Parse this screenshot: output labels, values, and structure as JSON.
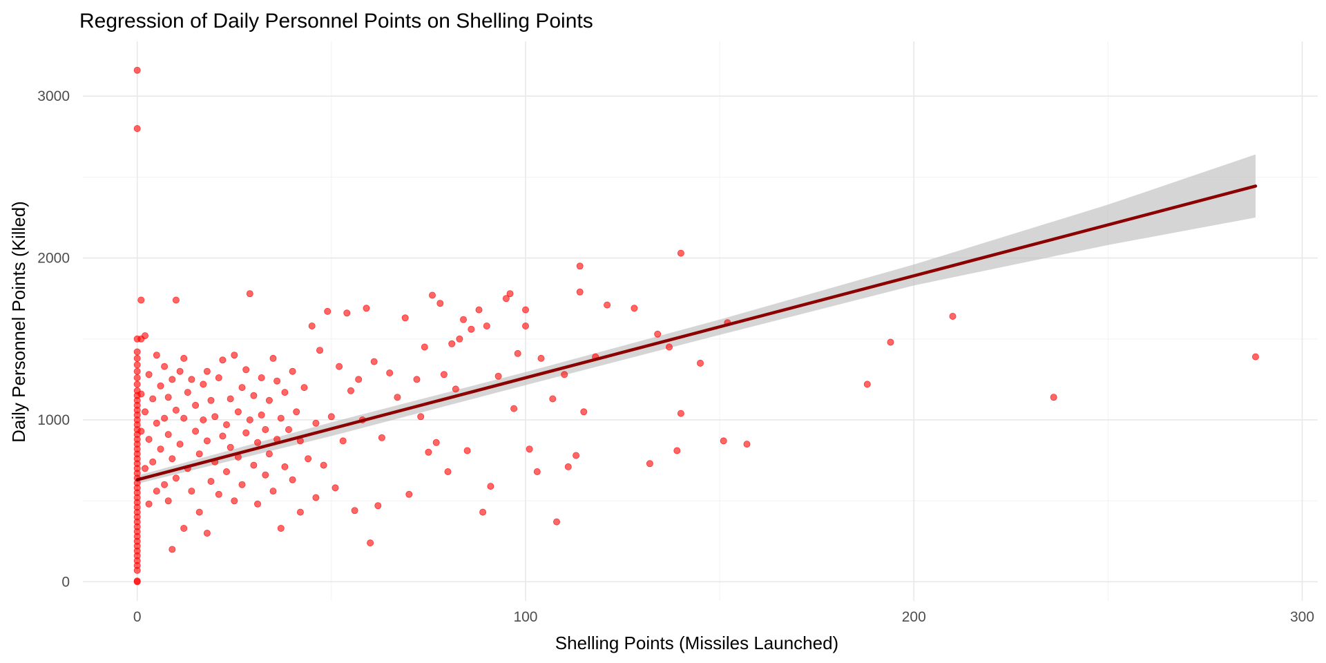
{
  "chart_data": {
    "type": "scatter",
    "title": "Regression of Daily Personnel Points on Shelling Points",
    "xlabel": "Shelling Points (Missiles Launched)",
    "ylabel": "Daily Personnel Points (Killed)",
    "xlim": [
      -14,
      304
    ],
    "ylim": [
      -118,
      3338
    ],
    "xticks": [
      0,
      100,
      200,
      300
    ],
    "yticks": [
      0,
      1000,
      2000,
      3000
    ],
    "grid": true,
    "colors": {
      "points": "#ff0000",
      "line": "#8b0000",
      "band": "#bebebe",
      "grid": "#ebebeb"
    },
    "regression": {
      "x_range": [
        0,
        288
      ],
      "intercept": 630,
      "slope": 6.3,
      "ci_lower": [
        [
          0,
          605
        ],
        [
          50,
          900
        ],
        [
          100,
          1215
        ],
        [
          150,
          1525
        ],
        [
          200,
          1830
        ],
        [
          250,
          2080
        ],
        [
          288,
          2250
        ]
      ],
      "ci_upper": [
        [
          0,
          655
        ],
        [
          50,
          985
        ],
        [
          100,
          1295
        ],
        [
          150,
          1620
        ],
        [
          200,
          1960
        ],
        [
          250,
          2330
        ],
        [
          288,
          2640
        ]
      ]
    },
    "points": [
      [
        0,
        3160
      ],
      [
        0,
        2800
      ],
      [
        0,
        1500
      ],
      [
        0,
        1420
      ],
      [
        0,
        1380
      ],
      [
        0,
        1340
      ],
      [
        0,
        1300
      ],
      [
        0,
        1260
      ],
      [
        0,
        1220
      ],
      [
        0,
        1180
      ],
      [
        0,
        1150
      ],
      [
        0,
        1120
      ],
      [
        0,
        1090
      ],
      [
        0,
        1060
      ],
      [
        0,
        1030
      ],
      [
        0,
        1000
      ],
      [
        0,
        970
      ],
      [
        0,
        940
      ],
      [
        0,
        910
      ],
      [
        0,
        880
      ],
      [
        0,
        850
      ],
      [
        0,
        820
      ],
      [
        0,
        790
      ],
      [
        0,
        760
      ],
      [
        0,
        730
      ],
      [
        0,
        700
      ],
      [
        0,
        670
      ],
      [
        0,
        640
      ],
      [
        0,
        610
      ],
      [
        0,
        580
      ],
      [
        0,
        550
      ],
      [
        0,
        520
      ],
      [
        0,
        490
      ],
      [
        0,
        460
      ],
      [
        0,
        430
      ],
      [
        0,
        400
      ],
      [
        0,
        370
      ],
      [
        0,
        340
      ],
      [
        0,
        310
      ],
      [
        0,
        280
      ],
      [
        0,
        250
      ],
      [
        0,
        220
      ],
      [
        0,
        190
      ],
      [
        0,
        160
      ],
      [
        0,
        130
      ],
      [
        0,
        100
      ],
      [
        0,
        70
      ],
      [
        0,
        0
      ],
      [
        0,
        5
      ],
      [
        1,
        1740
      ],
      [
        1,
        1500
      ],
      [
        1,
        1160
      ],
      [
        1,
        930
      ],
      [
        2,
        1520
      ],
      [
        2,
        1050
      ],
      [
        2,
        700
      ],
      [
        3,
        1280
      ],
      [
        3,
        880
      ],
      [
        3,
        480
      ],
      [
        4,
        1130
      ],
      [
        4,
        740
      ],
      [
        5,
        1400
      ],
      [
        5,
        980
      ],
      [
        5,
        560
      ],
      [
        6,
        1210
      ],
      [
        6,
        820
      ],
      [
        7,
        1010
      ],
      [
        7,
        600
      ],
      [
        7,
        1330
      ],
      [
        8,
        910
      ],
      [
        8,
        1140
      ],
      [
        8,
        500
      ],
      [
        9,
        200
      ],
      [
        9,
        1250
      ],
      [
        9,
        760
      ],
      [
        10,
        1740
      ],
      [
        10,
        1060
      ],
      [
        10,
        640
      ],
      [
        11,
        1300
      ],
      [
        11,
        850
      ],
      [
        12,
        1380
      ],
      [
        12,
        1010
      ],
      [
        12,
        330
      ],
      [
        13,
        700
      ],
      [
        13,
        1170
      ],
      [
        14,
        1250
      ],
      [
        14,
        560
      ],
      [
        15,
        930
      ],
      [
        15,
        1090
      ],
      [
        16,
        430
      ],
      [
        16,
        790
      ],
      [
        17,
        1220
      ],
      [
        17,
        1000
      ],
      [
        18,
        870
      ],
      [
        18,
        1300
      ],
      [
        18,
        300
      ],
      [
        19,
        620
      ],
      [
        19,
        1120
      ],
      [
        20,
        1020
      ],
      [
        20,
        740
      ],
      [
        21,
        1260
      ],
      [
        21,
        540
      ],
      [
        22,
        1370
      ],
      [
        22,
        900
      ],
      [
        23,
        970
      ],
      [
        23,
        680
      ],
      [
        24,
        1130
      ],
      [
        24,
        830
      ],
      [
        25,
        1400
      ],
      [
        25,
        500
      ],
      [
        26,
        1050
      ],
      [
        26,
        770
      ],
      [
        27,
        1200
      ],
      [
        27,
        600
      ],
      [
        28,
        920
      ],
      [
        28,
        1310
      ],
      [
        29,
        1780
      ],
      [
        29,
        1000
      ],
      [
        30,
        720
      ],
      [
        30,
        1150
      ],
      [
        31,
        860
      ],
      [
        31,
        480
      ],
      [
        32,
        1260
      ],
      [
        32,
        1030
      ],
      [
        33,
        940
      ],
      [
        33,
        660
      ],
      [
        34,
        1120
      ],
      [
        34,
        790
      ],
      [
        35,
        1380
      ],
      [
        35,
        560
      ],
      [
        36,
        1240
      ],
      [
        36,
        880
      ],
      [
        37,
        1010
      ],
      [
        37,
        330
      ],
      [
        38,
        1170
      ],
      [
        38,
        710
      ],
      [
        39,
        940
      ],
      [
        40,
        1300
      ],
      [
        40,
        630
      ],
      [
        41,
        1050
      ],
      [
        42,
        870
      ],
      [
        42,
        430
      ],
      [
        43,
        1200
      ],
      [
        44,
        760
      ],
      [
        45,
        1580
      ],
      [
        46,
        980
      ],
      [
        46,
        520
      ],
      [
        47,
        1430
      ],
      [
        48,
        720
      ],
      [
        49,
        1670
      ],
      [
        50,
        1020
      ],
      [
        51,
        580
      ],
      [
        52,
        1330
      ],
      [
        53,
        870
      ],
      [
        54,
        1660
      ],
      [
        55,
        1180
      ],
      [
        56,
        440
      ],
      [
        57,
        1250
      ],
      [
        58,
        1000
      ],
      [
        59,
        1690
      ],
      [
        60,
        240
      ],
      [
        61,
        1360
      ],
      [
        62,
        470
      ],
      [
        63,
        890
      ],
      [
        65,
        1290
      ],
      [
        67,
        1140
      ],
      [
        69,
        1630
      ],
      [
        70,
        540
      ],
      [
        72,
        1250
      ],
      [
        73,
        1020
      ],
      [
        74,
        1450
      ],
      [
        75,
        800
      ],
      [
        76,
        1770
      ],
      [
        77,
        860
      ],
      [
        78,
        1720
      ],
      [
        79,
        1280
      ],
      [
        80,
        680
      ],
      [
        81,
        1470
      ],
      [
        82,
        1190
      ],
      [
        83,
        1500
      ],
      [
        84,
        1620
      ],
      [
        85,
        810
      ],
      [
        86,
        1560
      ],
      [
        88,
        1680
      ],
      [
        89,
        430
      ],
      [
        90,
        1580
      ],
      [
        91,
        590
      ],
      [
        93,
        1270
      ],
      [
        95,
        1750
      ],
      [
        96,
        1780
      ],
      [
        97,
        1070
      ],
      [
        98,
        1410
      ],
      [
        100,
        1680
      ],
      [
        100,
        1580
      ],
      [
        101,
        820
      ],
      [
        103,
        680
      ],
      [
        104,
        1380
      ],
      [
        107,
        1130
      ],
      [
        108,
        370
      ],
      [
        110,
        1280
      ],
      [
        111,
        710
      ],
      [
        113,
        780
      ],
      [
        114,
        1950
      ],
      [
        114,
        1790
      ],
      [
        115,
        1050
      ],
      [
        118,
        1390
      ],
      [
        121,
        1710
      ],
      [
        128,
        1690
      ],
      [
        132,
        730
      ],
      [
        134,
        1530
      ],
      [
        137,
        1450
      ],
      [
        139,
        810
      ],
      [
        140,
        2030
      ],
      [
        140,
        1040
      ],
      [
        145,
        1350
      ],
      [
        151,
        870
      ],
      [
        152,
        1600
      ],
      [
        157,
        850
      ],
      [
        188,
        1220
      ],
      [
        194,
        1480
      ],
      [
        210,
        1640
      ],
      [
        236,
        1140
      ],
      [
        288,
        1390
      ]
    ]
  }
}
